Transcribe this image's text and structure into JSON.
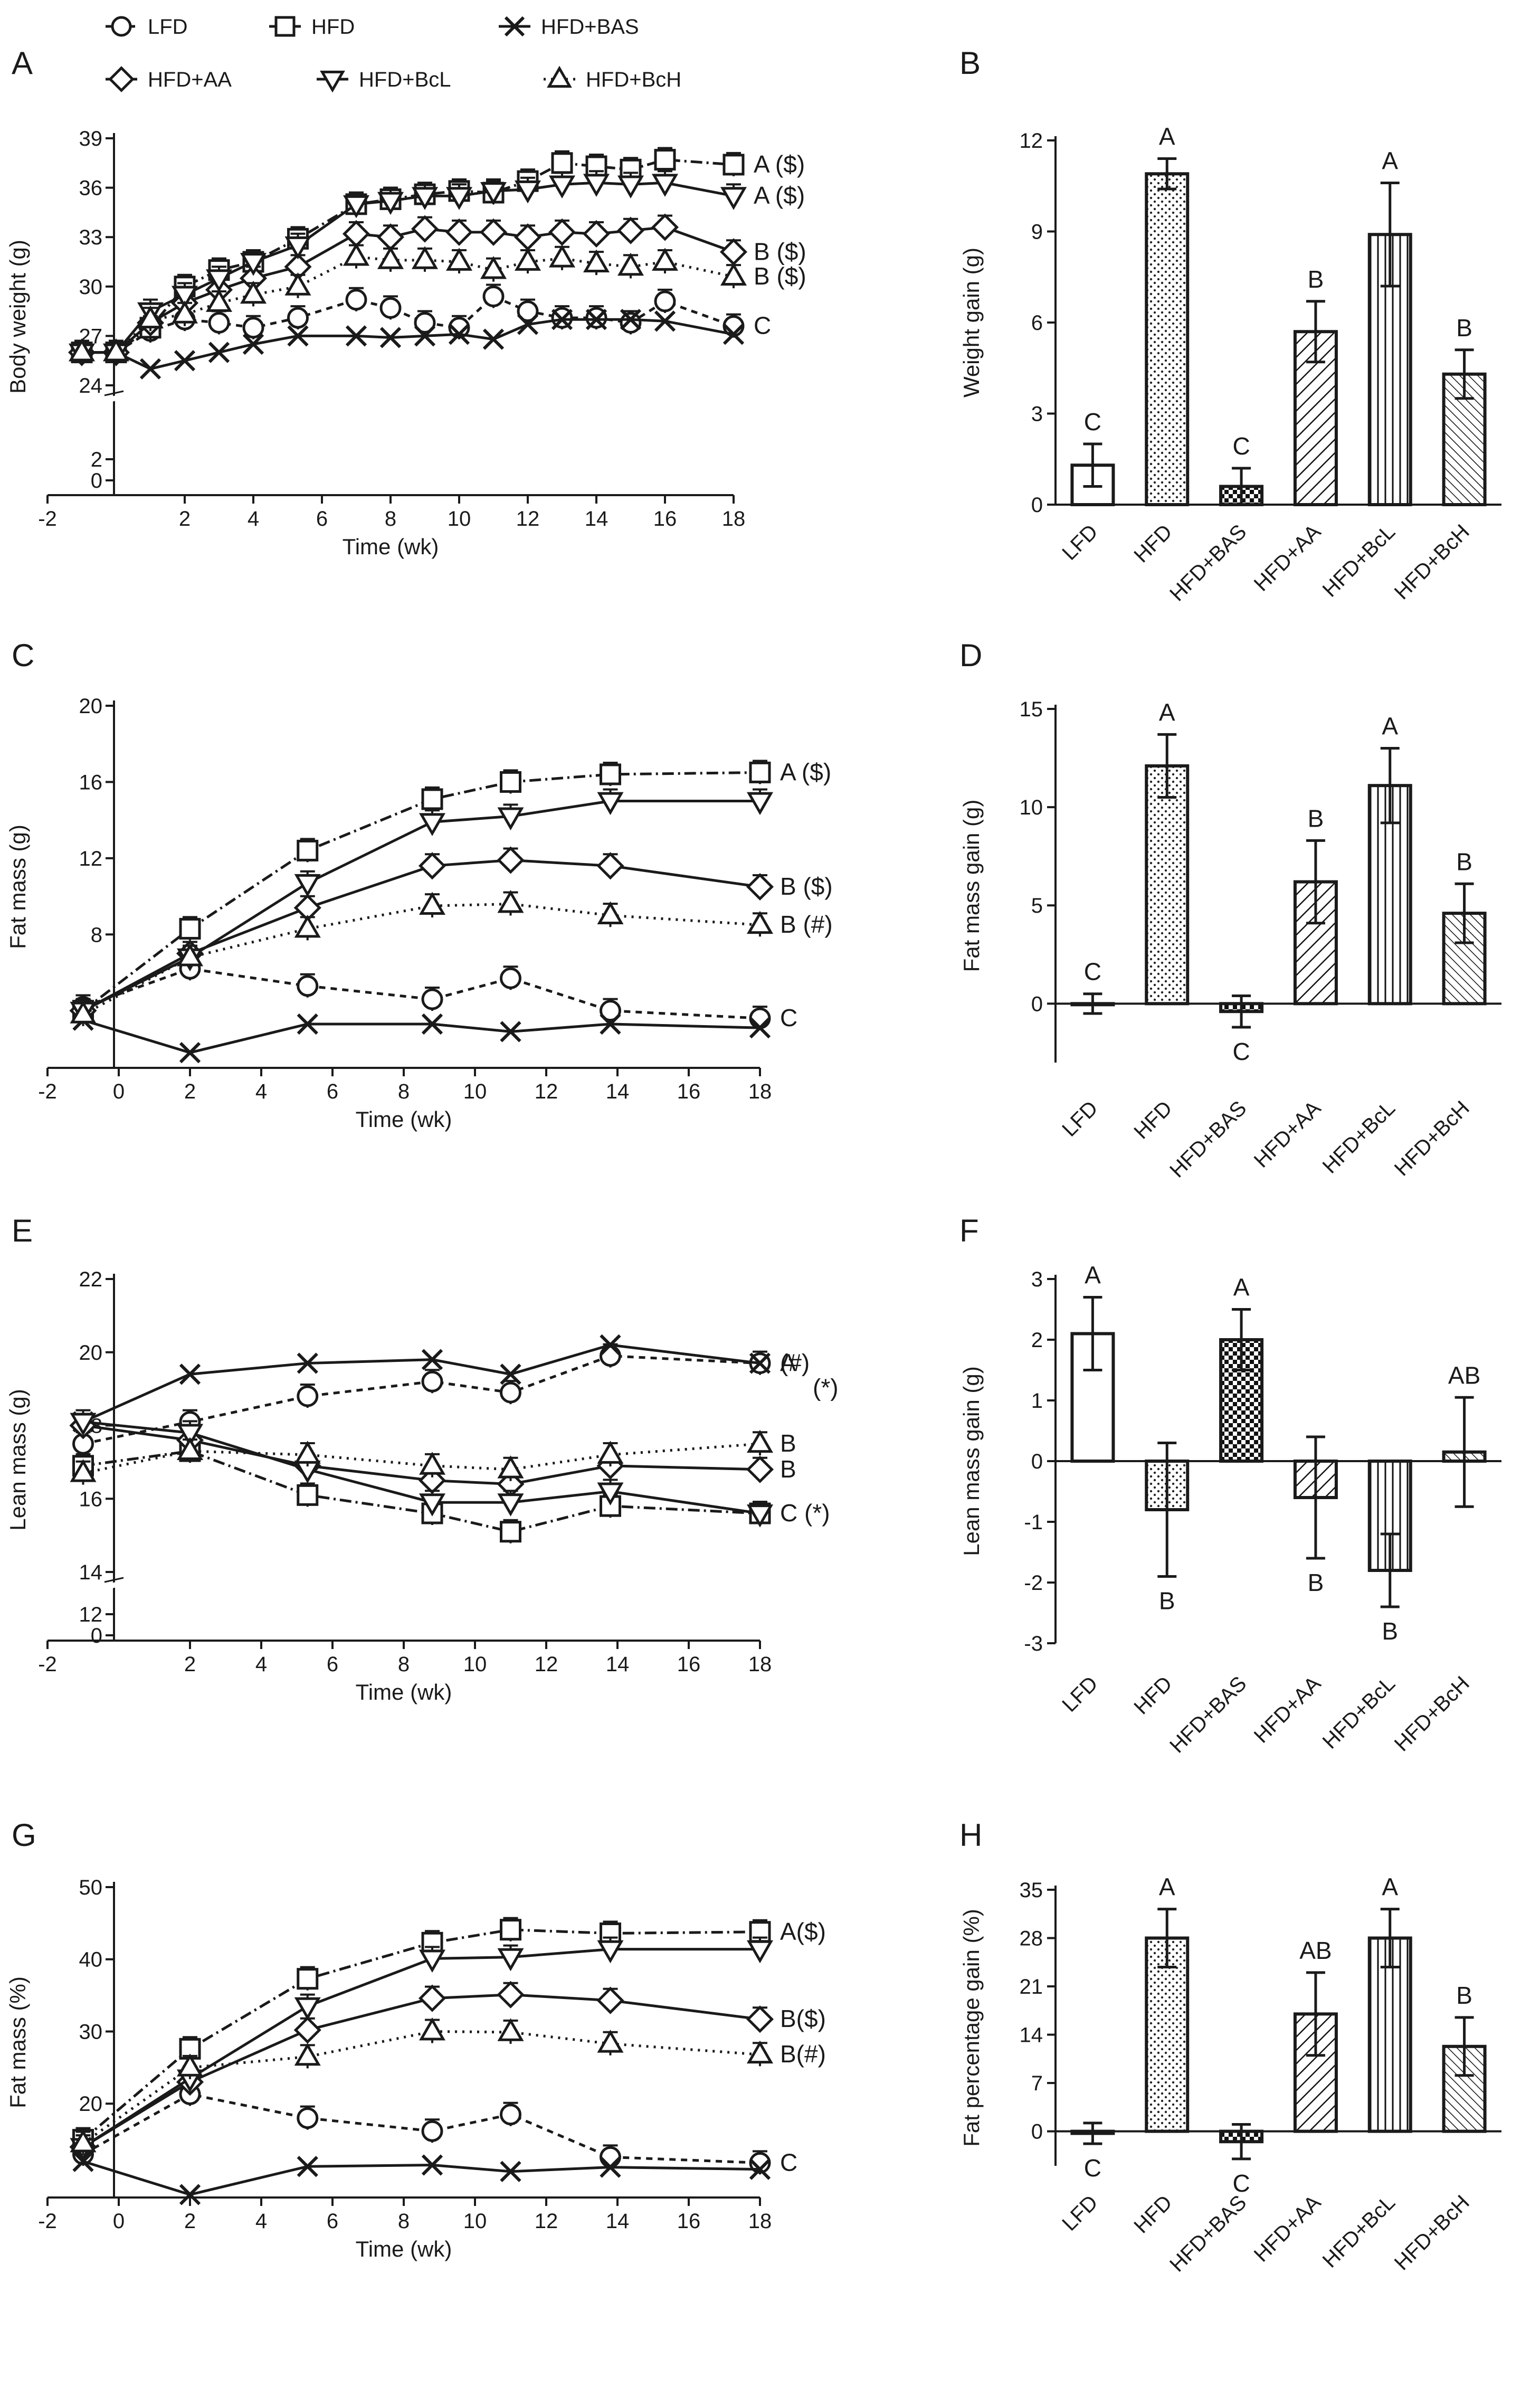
{
  "legend": [
    {
      "label": "LFD",
      "marker": "circle",
      "dash": "12,10"
    },
    {
      "label": "HFD",
      "marker": "square",
      "dash": "22,8,4,8"
    },
    {
      "label": "HFD+BAS",
      "marker": "cross",
      "dash": ""
    },
    {
      "label": "HFD+AA",
      "marker": "diamond",
      "dash": ""
    },
    {
      "label": "HFD+BcL",
      "marker": "tri-down",
      "dash": ""
    },
    {
      "label": "HFD+BcH",
      "marker": "tri-up",
      "dash": "4,10"
    }
  ],
  "chart_data": [
    {
      "panel": "A",
      "type": "line",
      "xlabel": "Time (wk)",
      "ylabel": "Body weight (g)",
      "xlim": [
        -2,
        18
      ],
      "xticks": [
        -2,
        2,
        4,
        6,
        8,
        10,
        12,
        14,
        16,
        18
      ],
      "ylim": [
        24,
        39
      ],
      "yticks": [
        24,
        27,
        30,
        33,
        36,
        39
      ],
      "y_break": {
        "low_ticks": [
          0,
          2
        ]
      },
      "x": [
        -1,
        0,
        1,
        2,
        3,
        4,
        5.3,
        7,
        8,
        9,
        10,
        11,
        12,
        13,
        14,
        15,
        16,
        18
      ],
      "series": [
        {
          "name": "LFD",
          "values": [
            26,
            26,
            27.3,
            28,
            27.8,
            27.5,
            28.1,
            29.2,
            28.7,
            27.8,
            27.5,
            29.4,
            28.5,
            28.1,
            28.1,
            27.8,
            29.1,
            27.6
          ],
          "ann": "C"
        },
        {
          "name": "HFD",
          "values": [
            26,
            26,
            27.5,
            30,
            31,
            31.5,
            32.9,
            35,
            35.3,
            35.6,
            35.8,
            35.7,
            36.4,
            37.5,
            37.3,
            37.1,
            37.7,
            37.4
          ],
          "ann": "A ($)"
        },
        {
          "name": "HFD+BAS",
          "values": [
            26,
            26,
            25,
            25.5,
            26,
            26.5,
            27,
            27,
            26.9,
            27,
            27.1,
            26.8,
            27.7,
            28,
            28,
            28,
            27.9,
            27.1
          ],
          "ann": ""
        },
        {
          "name": "HFD+AA",
          "values": [
            26,
            26,
            27.8,
            29,
            29.8,
            30.5,
            31.2,
            33.2,
            33,
            33.5,
            33.3,
            33.3,
            33,
            33.3,
            33.2,
            33.4,
            33.6,
            32.1
          ],
          "ann": "B ($)"
        },
        {
          "name": "HFD+BcL",
          "values": [
            26,
            26,
            28.5,
            29.5,
            30.5,
            31.5,
            32.5,
            35,
            35.2,
            35.5,
            35.5,
            35.8,
            35.9,
            36.2,
            36.3,
            36.2,
            36.3,
            35.5
          ],
          "ann": "A ($)"
        },
        {
          "name": "HFD+BcH",
          "values": [
            26,
            26,
            28,
            28.3,
            29,
            29.5,
            30,
            31.8,
            31.6,
            31.6,
            31.5,
            31,
            31.5,
            31.7,
            31.4,
            31.2,
            31.5,
            30.6
          ],
          "ann": "B ($)"
        }
      ]
    },
    {
      "panel": "B",
      "type": "bar",
      "ylabel": "Weight gain (g)",
      "ylim": [
        0,
        12
      ],
      "yticks": [
        0,
        3,
        6,
        9,
        12
      ],
      "categories": [
        "LFD",
        "HFD",
        "HFD+BAS",
        "HFD+AA",
        "HFD+BcL",
        "HFD+BcH"
      ],
      "values": [
        1.3,
        10.9,
        0.6,
        5.7,
        8.9,
        4.3
      ],
      "errors": [
        0.7,
        0.5,
        0.6,
        1.0,
        1.7,
        0.8
      ],
      "letters": [
        "C",
        "A",
        "C",
        "B",
        "A",
        "B"
      ]
    },
    {
      "panel": "C",
      "type": "line",
      "xlabel": "Time (wk)",
      "ylabel": "Fat mass (g)",
      "xlim": [
        -2,
        18
      ],
      "xticks": [
        -2,
        0,
        2,
        4,
        6,
        8,
        10,
        12,
        14,
        16,
        18
      ],
      "ylim": [
        1,
        20
      ],
      "yticks": [
        8,
        12,
        16,
        20
      ],
      "x": [
        -1,
        2,
        5.3,
        8.8,
        11,
        13.8,
        18
      ],
      "series": [
        {
          "name": "LFD",
          "values": [
            4.2,
            6.2,
            5.3,
            4.6,
            5.7,
            4,
            3.6
          ],
          "ann": "C"
        },
        {
          "name": "HFD",
          "values": [
            4,
            8.3,
            12.4,
            15.1,
            16,
            16.4,
            16.5
          ],
          "ann": "A ($)"
        },
        {
          "name": "HFD+BAS",
          "values": [
            3.5,
            1.8,
            3.3,
            3.3,
            2.9,
            3.3,
            3.1
          ],
          "ann": ""
        },
        {
          "name": "HFD+AA",
          "values": [
            4,
            7,
            9.4,
            11.6,
            11.9,
            11.6,
            10.5
          ],
          "ann": "B ($)"
        },
        {
          "name": "HFD+BcL",
          "values": [
            4,
            6.8,
            10.7,
            13.9,
            14.2,
            15,
            15
          ],
          "ann": ""
        },
        {
          "name": "HFD+BcH",
          "values": [
            3.8,
            6.8,
            8.3,
            9.5,
            9.6,
            9,
            8.5
          ],
          "ann": "B (#)"
        }
      ]
    },
    {
      "panel": "D",
      "type": "bar",
      "ylabel": "Fat mass gain (g)",
      "ylim": [
        -3,
        15
      ],
      "yticks": [
        0,
        5,
        10,
        15
      ],
      "categories": [
        "LFD",
        "HFD",
        "HFD+BAS",
        "HFD+AA",
        "HFD+BcL",
        "HFD+BcH"
      ],
      "values": [
        0,
        12.1,
        -0.4,
        6.2,
        11.1,
        4.6
      ],
      "errors": [
        0.5,
        1.6,
        0.8,
        2.1,
        1.9,
        1.5
      ],
      "letters": [
        "C",
        "A",
        "C",
        "B",
        "A",
        "B"
      ]
    },
    {
      "panel": "E",
      "type": "line",
      "xlabel": "Time (wk)",
      "ylabel": "Lean mass (g)",
      "xlim": [
        -2,
        18
      ],
      "xticks": [
        -2,
        2,
        4,
        6,
        8,
        10,
        12,
        14,
        16,
        18
      ],
      "ylim": [
        14,
        22
      ],
      "yticks": [
        14,
        16,
        18,
        20,
        22
      ],
      "y_break": {
        "low_ticks": [
          0,
          12
        ]
      },
      "x": [
        -1,
        2,
        5.3,
        8.8,
        11,
        13.8,
        18
      ],
      "series": [
        {
          "name": "LFD",
          "values": [
            17.5,
            18.1,
            18.8,
            19.2,
            18.9,
            19.9,
            19.7
          ],
          "ann": "A"
        },
        {
          "name": "HFD",
          "values": [
            16.9,
            17.3,
            16.1,
            15.6,
            15.1,
            15.8,
            15.6
          ],
          "ann": "C (*)"
        },
        {
          "name": "HFD+BAS",
          "values": [
            18.1,
            19.4,
            19.7,
            19.8,
            19.4,
            20.2,
            19.7
          ],
          "ann": "(#)"
        },
        {
          "name": "HFD+AA",
          "values": [
            18,
            17.6,
            16.9,
            16.5,
            16.4,
            16.9,
            16.8
          ],
          "ann": "B"
        },
        {
          "name": "HFD+BcL",
          "values": [
            18.1,
            17.8,
            16.8,
            15.9,
            15.9,
            16.2,
            15.6
          ],
          "ann": ""
        },
        {
          "name": "HFD+BcH",
          "values": [
            16.7,
            17.3,
            17.2,
            16.9,
            16.8,
            17.2,
            17.5
          ],
          "ann": "B"
        }
      ],
      "extra_annotations": [
        {
          "text": "(*)",
          "series": "LFD"
        }
      ]
    },
    {
      "panel": "F",
      "type": "bar",
      "ylabel": "Lean mass gain (g)",
      "ylim": [
        -3,
        3
      ],
      "yticks": [
        -3,
        -2,
        -1,
        0,
        1,
        2,
        3
      ],
      "categories": [
        "LFD",
        "HFD",
        "HFD+BAS",
        "HFD+AA",
        "HFD+BcL",
        "HFD+BcH"
      ],
      "values": [
        2.1,
        -0.8,
        2.0,
        -0.6,
        -1.8,
        0.15
      ],
      "errors": [
        0.6,
        1.1,
        0.5,
        1.0,
        0.6,
        0.9
      ],
      "letters": [
        "A",
        "B",
        "A",
        "B",
        "B",
        "AB"
      ]
    },
    {
      "panel": "G",
      "type": "line",
      "xlabel": "Time (wk)",
      "ylabel": "Fat mass (%)",
      "xlim": [
        -2,
        18
      ],
      "xticks": [
        -2,
        0,
        2,
        4,
        6,
        8,
        10,
        12,
        14,
        16,
        18
      ],
      "ylim": [
        7,
        50
      ],
      "yticks": [
        20,
        30,
        40,
        50
      ],
      "x": [
        -1,
        2,
        5.3,
        8.8,
        11,
        13.8,
        18
      ],
      "series": [
        {
          "name": "LFD",
          "values": [
            13,
            21.3,
            18,
            16.2,
            18.5,
            12.6,
            11.8
          ],
          "ann": "C"
        },
        {
          "name": "HFD",
          "values": [
            15,
            27.6,
            37.3,
            42.3,
            44.1,
            43.6,
            43.8
          ],
          "ann": "A($)"
        },
        {
          "name": "HFD+BAS",
          "values": [
            12,
            7.4,
            11.3,
            11.5,
            10.6,
            11.2,
            10.9
          ],
          "ann": ""
        },
        {
          "name": "HFD+AA",
          "values": [
            14,
            23,
            30.2,
            34.6,
            35.1,
            34.3,
            31.7
          ],
          "ann": "B($)"
        },
        {
          "name": "HFD+BcL",
          "values": [
            14,
            23.5,
            33.5,
            40.1,
            40.3,
            41.4,
            41.4
          ],
          "ann": ""
        },
        {
          "name": "HFD+BcH",
          "values": [
            14.5,
            25,
            26.5,
            30,
            29.9,
            28.3,
            26.8
          ],
          "ann": "B(#)"
        }
      ]
    },
    {
      "panel": "H",
      "type": "bar",
      "ylabel": "Fat percentage gain (%)",
      "ylim": [
        -5,
        35
      ],
      "yticks": [
        0,
        7,
        14,
        21,
        28,
        35
      ],
      "categories": [
        "LFD",
        "HFD",
        "HFD+BAS",
        "HFD+AA",
        "HFD+BcL",
        "HFD+BcH"
      ],
      "values": [
        -0.3,
        28,
        -1.5,
        17,
        28,
        12.3
      ],
      "errors": [
        1.5,
        4.2,
        2.5,
        6.0,
        4.2,
        4.2
      ],
      "letters": [
        "C",
        "A",
        "C",
        "AB",
        "A",
        "B"
      ]
    }
  ]
}
